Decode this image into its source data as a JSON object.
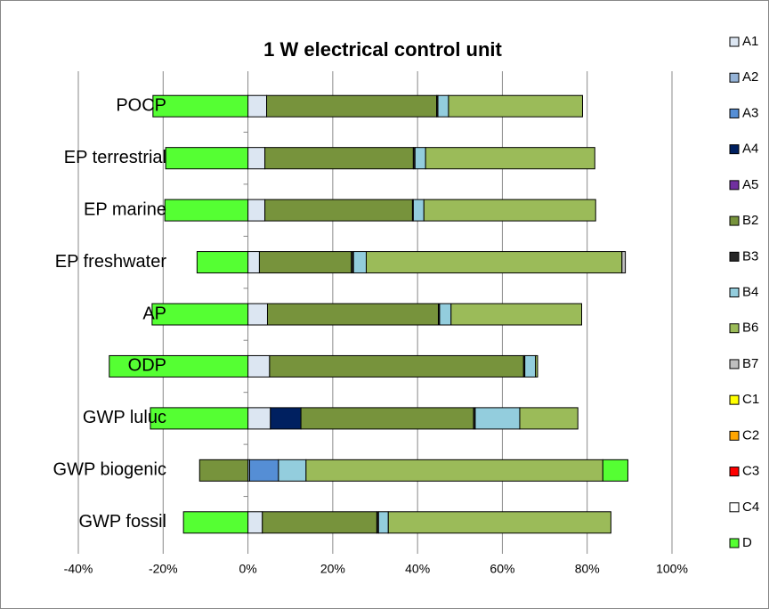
{
  "chart_data": {
    "type": "stacked-barh",
    "title": "1 W electrical control unit",
    "categories": [
      "POCP",
      "EP terrestrial",
      "EP marine",
      "EP freshwater",
      "AP",
      "ODP",
      "GWP luluc",
      "GWP biogenic",
      "GWP fossil"
    ],
    "series": [
      {
        "name": "A1",
        "color": "#dce6f2",
        "values": [
          4.4,
          4.0,
          4.0,
          2.7,
          4.6,
          5.1,
          5.3,
          0,
          3.4
        ]
      },
      {
        "name": "A2",
        "color": "#95b3d7",
        "values": [
          0,
          0,
          0,
          0,
          0,
          0,
          0,
          0.4,
          0
        ]
      },
      {
        "name": "A3",
        "color": "#558ed5",
        "values": [
          0,
          0,
          0,
          0,
          0,
          0,
          0,
          6.8,
          0
        ]
      },
      {
        "name": "A4",
        "color": "#002060",
        "values": [
          0,
          0,
          0,
          0,
          0,
          0,
          7.2,
          0,
          0
        ]
      },
      {
        "name": "A5",
        "color": "#7030a0",
        "values": [
          0,
          0,
          0,
          0,
          0,
          0,
          0,
          0,
          0
        ]
      },
      {
        "name": "B2",
        "color": "#77933c",
        "values": [
          40.1,
          35.0,
          34.8,
          21.7,
          40.3,
          59.9,
          40.7,
          -11.4,
          27.0
        ]
      },
      {
        "name": "B3",
        "color": "#262626",
        "values": [
          0.3,
          0.4,
          0.2,
          0.5,
          0.3,
          0.3,
          0.4,
          0,
          0.4
        ]
      },
      {
        "name": "B4",
        "color": "#93cddd",
        "values": [
          2.5,
          2.5,
          2.5,
          3.0,
          2.7,
          2.5,
          10.5,
          6.5,
          2.3
        ]
      },
      {
        "name": "B6",
        "color": "#9bbb59",
        "values": [
          31.6,
          39.9,
          40.5,
          60.3,
          30.8,
          0.5,
          13.7,
          70.0,
          52.5
        ]
      },
      {
        "name": "B7",
        "color": "#bfbfbf",
        "values": [
          0,
          0,
          0,
          0.8,
          0,
          0,
          0,
          0,
          0
        ]
      },
      {
        "name": "C1",
        "color": "#ffff00",
        "values": [
          0,
          0,
          0,
          0,
          0,
          0,
          0,
          0,
          0
        ]
      },
      {
        "name": "C2",
        "color": "#ffa500",
        "values": [
          0,
          0,
          0,
          0,
          0,
          0,
          0,
          0,
          0
        ]
      },
      {
        "name": "C3",
        "color": "#ff0000",
        "values": [
          0,
          0,
          0,
          0,
          0,
          0,
          0,
          0,
          0
        ]
      },
      {
        "name": "C4",
        "color": "#ffffff",
        "values": [
          0,
          0,
          0,
          0,
          0,
          0,
          0,
          0,
          0
        ]
      },
      {
        "name": "D",
        "color": "#55ff33",
        "values": [
          -22.4,
          -19.4,
          -19.6,
          -12.0,
          -22.6,
          -32.7,
          -23.0,
          5.9,
          -15.2
        ]
      }
    ],
    "xlim": [
      -40,
      100
    ],
    "xticks": [
      {
        "value": -40,
        "label": "-40%"
      },
      {
        "value": -20,
        "label": "-20%"
      },
      {
        "value": 0,
        "label": "0%"
      },
      {
        "value": 20,
        "label": "20%"
      },
      {
        "value": 40,
        "label": "40%"
      },
      {
        "value": 60,
        "label": "60%"
      },
      {
        "value": 80,
        "label": "80%"
      },
      {
        "value": 100,
        "label": "100%"
      }
    ],
    "grid": true,
    "legend": "right"
  }
}
